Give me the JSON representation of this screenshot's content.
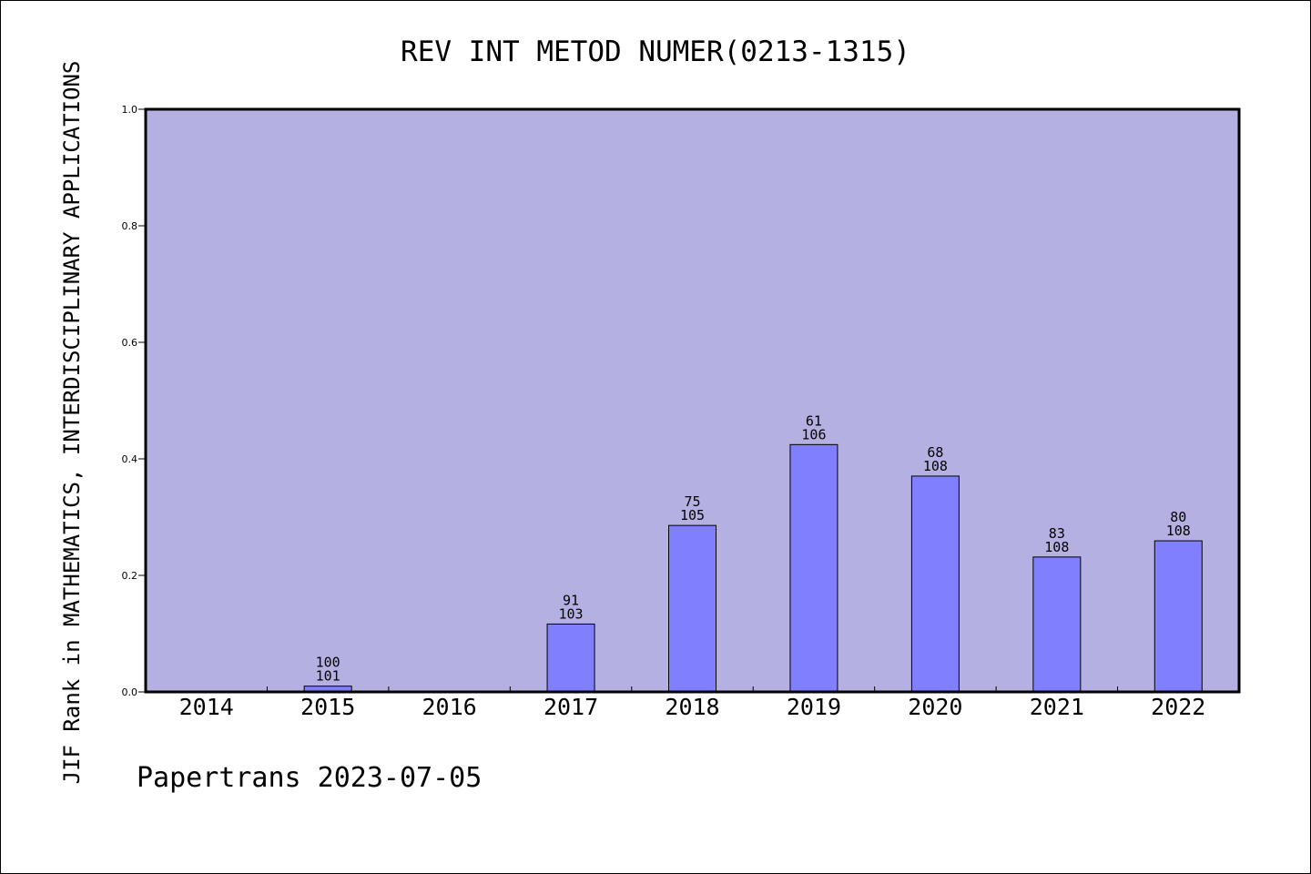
{
  "chart_data": {
    "type": "bar",
    "title": "REV INT METOD NUMER(0213-1315)",
    "ylabel": "JIF Rank in MATHEMATICS,  INTERDISCIPLINARY APPLICATIONS",
    "xlabel": "",
    "footer": "Papertrans 2023-07-05",
    "categories": [
      "2014",
      "2015",
      "2016",
      "2017",
      "2018",
      "2019",
      "2020",
      "2021",
      "2022"
    ],
    "values": [
      null,
      0.0099,
      null,
      0.1165,
      0.2857,
      0.4245,
      0.3704,
      0.2315,
      0.2593
    ],
    "label_top": [
      null,
      "100",
      null,
      "91",
      "75",
      "61",
      "68",
      "83",
      "80"
    ],
    "label_bottom": [
      null,
      "101",
      null,
      "103",
      "105",
      "106",
      "108",
      "108",
      "108"
    ],
    "ylim": [
      0,
      1.0
    ],
    "yticks": [
      "0.0",
      "0.2",
      "0.4",
      "0.6",
      "0.8",
      "1.0"
    ],
    "plot_bg": "#b5b0e2",
    "bar_color": "#8080ff"
  }
}
